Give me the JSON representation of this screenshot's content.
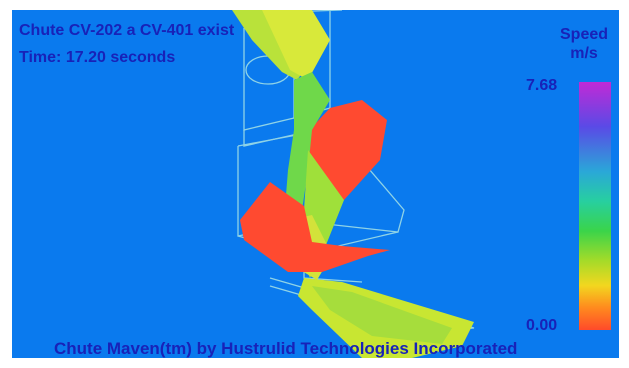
{
  "simulation": {
    "title": "Chute CV-202 a CV-401 exist",
    "time_label": "Time: 17.20 seconds"
  },
  "legend": {
    "title_line1": "Speed",
    "title_line2": "m/s",
    "max_label": "7.68",
    "min_label": "0.00"
  },
  "footer": {
    "credit": "Chute Maven(tm) by Hustrulid Technologies Incorporated"
  },
  "colors": {
    "background": "#0a7aee",
    "text": "#1822b8",
    "frame_lines": "#8fd3e6",
    "fast_particles": "#c8e632",
    "slow_particles": "#ff4a30"
  }
}
